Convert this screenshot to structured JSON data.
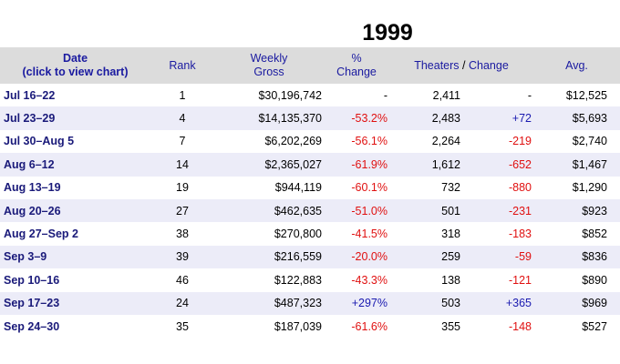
{
  "title": "1999",
  "headers": {
    "date_line1": "Date",
    "date_line2": "(click to view chart)",
    "rank": "Rank",
    "gross_line1": "Weekly",
    "gross_line2": "Gross",
    "pct_line1": "%",
    "pct_line2": "Change",
    "theaters": "Theaters",
    "slash": "/",
    "change": "Change",
    "avg": "Avg."
  },
  "colors": {
    "header_bg": "#dcdcdc",
    "header_text": "#1a1aa0",
    "alt_row": "#ececf8",
    "negative": "#e01010",
    "positive": "#1a1ab0"
  },
  "rows": [
    {
      "date": "Jul 16–22",
      "rank": "1",
      "gross": "$30,196,742",
      "pct": "-",
      "pct_type": "neu",
      "theaters": "2,411",
      "change": "-",
      "change_type": "neu",
      "avg": "$12,525"
    },
    {
      "date": "Jul 23–29",
      "rank": "4",
      "gross": "$14,135,370",
      "pct": "-53.2%",
      "pct_type": "neg",
      "theaters": "2,483",
      "change": "+72",
      "change_type": "pos",
      "avg": "$5,693"
    },
    {
      "date": "Jul 30–Aug 5",
      "rank": "7",
      "gross": "$6,202,269",
      "pct": "-56.1%",
      "pct_type": "neg",
      "theaters": "2,264",
      "change": "-219",
      "change_type": "neg",
      "avg": "$2,740"
    },
    {
      "date": "Aug 6–12",
      "rank": "14",
      "gross": "$2,365,027",
      "pct": "-61.9%",
      "pct_type": "neg",
      "theaters": "1,612",
      "change": "-652",
      "change_type": "neg",
      "avg": "$1,467"
    },
    {
      "date": "Aug 13–19",
      "rank": "19",
      "gross": "$944,119",
      "pct": "-60.1%",
      "pct_type": "neg",
      "theaters": "732",
      "change": "-880",
      "change_type": "neg",
      "avg": "$1,290"
    },
    {
      "date": "Aug 20–26",
      "rank": "27",
      "gross": "$462,635",
      "pct": "-51.0%",
      "pct_type": "neg",
      "theaters": "501",
      "change": "-231",
      "change_type": "neg",
      "avg": "$923"
    },
    {
      "date": "Aug 27–Sep 2",
      "rank": "38",
      "gross": "$270,800",
      "pct": "-41.5%",
      "pct_type": "neg",
      "theaters": "318",
      "change": "-183",
      "change_type": "neg",
      "avg": "$852"
    },
    {
      "date": "Sep 3–9",
      "rank": "39",
      "gross": "$216,559",
      "pct": "-20.0%",
      "pct_type": "neg",
      "theaters": "259",
      "change": "-59",
      "change_type": "neg",
      "avg": "$836"
    },
    {
      "date": "Sep 10–16",
      "rank": "46",
      "gross": "$122,883",
      "pct": "-43.3%",
      "pct_type": "neg",
      "theaters": "138",
      "change": "-121",
      "change_type": "neg",
      "avg": "$890"
    },
    {
      "date": "Sep 17–23",
      "rank": "24",
      "gross": "$487,323",
      "pct": "+297%",
      "pct_type": "pos",
      "theaters": "503",
      "change": "+365",
      "change_type": "pos",
      "avg": "$969"
    },
    {
      "date": "Sep 24–30",
      "rank": "35",
      "gross": "$187,039",
      "pct": "-61.6%",
      "pct_type": "neg",
      "theaters": "355",
      "change": "-148",
      "change_type": "neg",
      "avg": "$527"
    }
  ]
}
